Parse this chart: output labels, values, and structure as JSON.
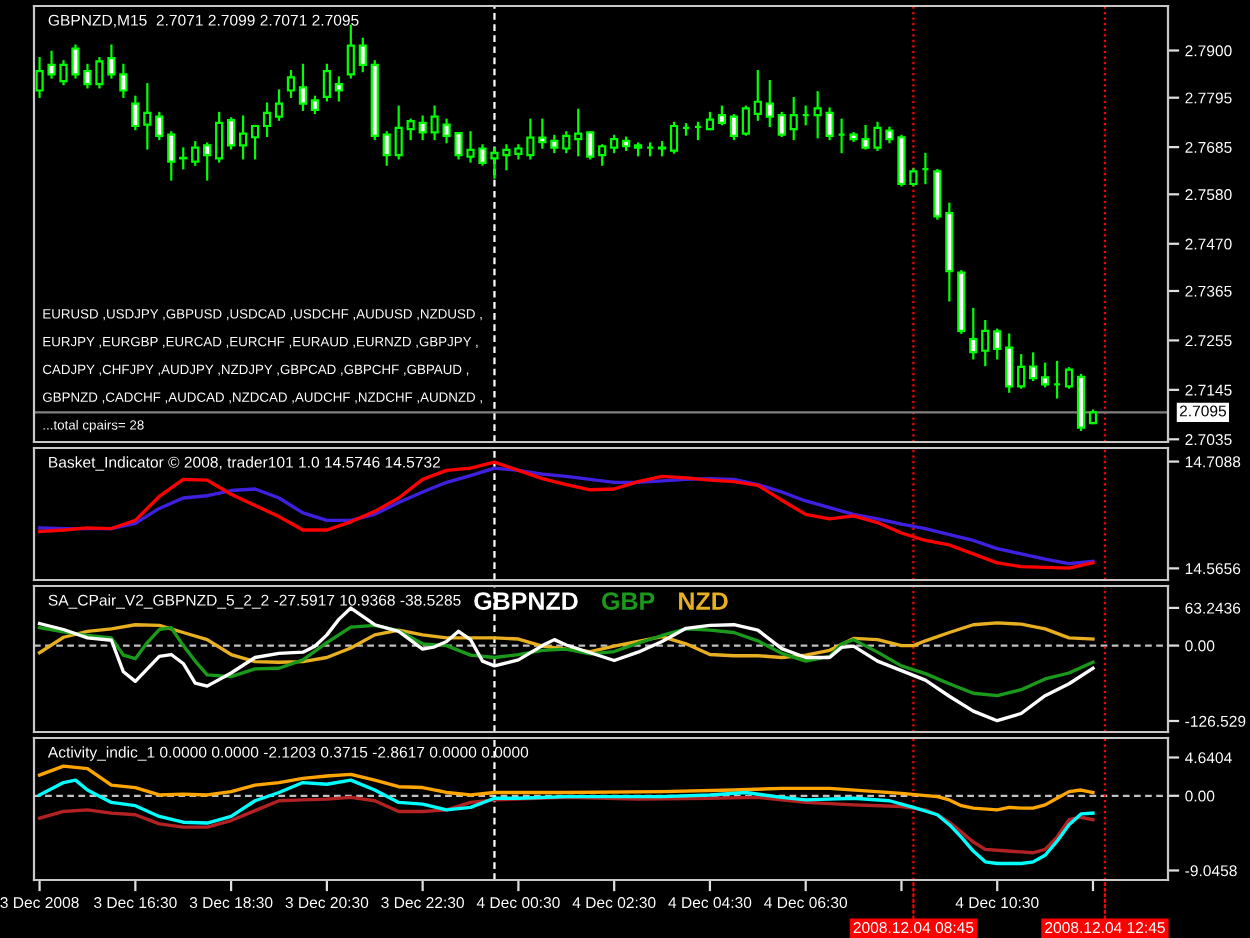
{
  "chart_data": [
    {
      "type": "candlestick",
      "title": "GBPNZD,M15  2.7071 2.7099 2.7071 2.7095",
      "annotations": [
        "EURUSD ,USDJPY ,GBPUSD ,USDCAD ,USDCHF ,AUDUSD ,NZDUSD ,",
        "EURJPY ,EURGBP ,EURCAD ,EURCHF ,EURAUD ,EURNZD ,GBPJPY ,",
        "CADJPY ,CHFJPY ,AUDJPY ,NZDJPY ,GBPCAD ,GBPCHF ,GBPAUD ,",
        "GBPNZD ,CADCHF ,AUDCAD ,NZDCAD ,AUDCHF ,NZDCHF ,AUDNZD ,",
        "...total cpairs= 28"
      ],
      "x": [
        "2008-12-03T14:30",
        "2008-12-03T14:45",
        "2008-12-03T15:00",
        "2008-12-03T15:15",
        "2008-12-03T15:30",
        "2008-12-03T15:45",
        "2008-12-03T16:00",
        "2008-12-03T16:15",
        "2008-12-03T16:30",
        "2008-12-03T16:45",
        "2008-12-03T17:00",
        "2008-12-03T17:15",
        "2008-12-03T17:30",
        "2008-12-03T17:45",
        "2008-12-03T18:00",
        "2008-12-03T18:15",
        "2008-12-03T18:30",
        "2008-12-03T18:45",
        "2008-12-03T19:00",
        "2008-12-03T19:15",
        "2008-12-03T19:30",
        "2008-12-03T19:45",
        "2008-12-03T20:00",
        "2008-12-03T20:15",
        "2008-12-03T20:30",
        "2008-12-03T20:45",
        "2008-12-03T21:00",
        "2008-12-03T21:15",
        "2008-12-03T21:30",
        "2008-12-03T21:45",
        "2008-12-03T22:00",
        "2008-12-03T22:15",
        "2008-12-03T22:30",
        "2008-12-03T22:45",
        "2008-12-03T23:00",
        "2008-12-03T23:15",
        "2008-12-03T23:30",
        "2008-12-03T23:45",
        "2008-12-04T00:00",
        "2008-12-04T00:15",
        "2008-12-04T00:30",
        "2008-12-04T00:45",
        "2008-12-04T01:00",
        "2008-12-04T01:15",
        "2008-12-04T01:30",
        "2008-12-04T01:45",
        "2008-12-04T02:00",
        "2008-12-04T02:15",
        "2008-12-04T02:30",
        "2008-12-04T02:45",
        "2008-12-04T03:00",
        "2008-12-04T03:15",
        "2008-12-04T03:30",
        "2008-12-04T03:45",
        "2008-12-04T04:00",
        "2008-12-04T04:15",
        "2008-12-04T04:30",
        "2008-12-04T04:45",
        "2008-12-04T05:00",
        "2008-12-04T05:15",
        "2008-12-04T05:30",
        "2008-12-04T05:45",
        "2008-12-04T06:00",
        "2008-12-04T06:15",
        "2008-12-04T06:30",
        "2008-12-04T06:45",
        "2008-12-04T07:00",
        "2008-12-04T07:15",
        "2008-12-04T07:30",
        "2008-12-04T07:45",
        "2008-12-04T08:00",
        "2008-12-04T08:15",
        "2008-12-04T08:30",
        "2008-12-04T08:45",
        "2008-12-04T09:00",
        "2008-12-04T09:15",
        "2008-12-04T09:30",
        "2008-12-04T09:45",
        "2008-12-04T10:00",
        "2008-12-04T10:15",
        "2008-12-04T10:30",
        "2008-12-04T10:45",
        "2008-12-04T11:00",
        "2008-12-04T11:15",
        "2008-12-04T11:30",
        "2008-12-04T11:45",
        "2008-12-04T12:00",
        "2008-12-04T12:15",
        "2008-12-04T12:30"
      ],
      "ohlc": [
        [
          2.7811,
          2.7883,
          2.7797,
          2.7854
        ],
        [
          2.7868,
          2.7897,
          2.784,
          2.7847
        ],
        [
          2.7832,
          2.7876,
          2.7825,
          2.7868
        ],
        [
          2.7904,
          2.7911,
          2.784,
          2.7847
        ],
        [
          2.7854,
          2.7868,
          2.7818,
          2.7825
        ],
        [
          2.7825,
          2.7883,
          2.7818,
          2.7876
        ],
        [
          2.7883,
          2.7911,
          2.784,
          2.7847
        ],
        [
          2.7847,
          2.7868,
          2.7797,
          2.7811
        ],
        [
          2.7782,
          2.7797,
          2.7725,
          2.7732
        ],
        [
          2.7735,
          2.7825,
          2.7682,
          2.7761
        ],
        [
          2.7753,
          2.7761,
          2.7703,
          2.771
        ],
        [
          2.7713,
          2.7718,
          2.7613,
          2.7653
        ],
        [
          2.766,
          2.7682,
          2.7638,
          2.7661
        ],
        [
          2.7653,
          2.7696,
          2.7646,
          2.7684
        ],
        [
          2.7689,
          2.7693,
          2.7613,
          2.7667
        ],
        [
          2.766,
          2.7761,
          2.7653,
          2.7739
        ],
        [
          2.7745,
          2.7749,
          2.7682,
          2.7689
        ],
        [
          2.7689,
          2.7753,
          2.766,
          2.7715
        ],
        [
          2.7707,
          2.7732,
          2.766,
          2.7732
        ],
        [
          2.7732,
          2.7782,
          2.771,
          2.7761
        ],
        [
          2.7753,
          2.7811,
          2.7746,
          2.7782
        ],
        [
          2.7811,
          2.7854,
          2.7797,
          2.784
        ],
        [
          2.7818,
          2.7868,
          2.7768,
          2.7782
        ],
        [
          2.7789,
          2.7797,
          2.7761,
          2.7768
        ],
        [
          2.7797,
          2.7868,
          2.7789,
          2.7854
        ],
        [
          2.7825,
          2.784,
          2.7789,
          2.7811
        ],
        [
          2.7847,
          2.7955,
          2.784,
          2.7911
        ],
        [
          2.7911,
          2.7926,
          2.7854,
          2.7868
        ],
        [
          2.7868,
          2.7876,
          2.7703,
          2.771
        ],
        [
          2.7713,
          2.7718,
          2.7646,
          2.7667
        ],
        [
          2.7667,
          2.7775,
          2.766,
          2.7728
        ],
        [
          2.7725,
          2.7746,
          2.7703,
          2.7743
        ],
        [
          2.7739,
          2.7753,
          2.7703,
          2.7718
        ],
        [
          2.7718,
          2.7775,
          2.7703,
          2.7753
        ],
        [
          2.7735,
          2.7746,
          2.7696,
          2.771
        ],
        [
          2.7716,
          2.7716,
          2.766,
          2.7667
        ],
        [
          2.7664,
          2.7718,
          2.7653,
          2.7679
        ],
        [
          2.7682,
          2.7689,
          2.7646,
          2.765
        ],
        [
          2.766,
          2.7682,
          2.7617,
          2.7672
        ],
        [
          2.7667,
          2.7689,
          2.7636,
          2.7679
        ],
        [
          2.767,
          2.7689,
          2.766,
          2.7682
        ],
        [
          2.7667,
          2.7746,
          2.766,
          2.7706
        ],
        [
          2.7706,
          2.7746,
          2.7684,
          2.7696
        ],
        [
          2.7699,
          2.771,
          2.7674,
          2.7684
        ],
        [
          2.7682,
          2.7718,
          2.7674,
          2.771
        ],
        [
          2.7703,
          2.7768,
          2.7667,
          2.7715
        ],
        [
          2.7718,
          2.7718,
          2.766,
          2.7664
        ],
        [
          2.7667,
          2.7689,
          2.7646,
          2.7687
        ],
        [
          2.7684,
          2.771,
          2.7674,
          2.7703
        ],
        [
          2.7699,
          2.7706,
          2.7679,
          2.7687
        ],
        [
          2.7689,
          2.7693,
          2.7667,
          2.7684
        ],
        [
          2.7684,
          2.7693,
          2.7667,
          2.7684
        ],
        [
          2.7684,
          2.7696,
          2.7667,
          2.7682
        ],
        [
          2.7677,
          2.7739,
          2.7673,
          2.7732
        ],
        [
          2.7728,
          2.7736,
          2.7713,
          2.7728
        ],
        [
          2.773,
          2.7739,
          2.7703,
          2.773
        ],
        [
          2.7725,
          2.7761,
          2.7725,
          2.7746
        ],
        [
          2.7756,
          2.7775,
          2.7736,
          2.7739
        ],
        [
          2.7753,
          2.7756,
          2.7703,
          2.771
        ],
        [
          2.7715,
          2.7775,
          2.7713,
          2.7771
        ],
        [
          2.7759,
          2.7854,
          2.7746,
          2.7786
        ],
        [
          2.7782,
          2.7832,
          2.7732,
          2.7753
        ],
        [
          2.7756,
          2.7761,
          2.771,
          2.7713
        ],
        [
          2.7725,
          2.7794,
          2.7703,
          2.7756
        ],
        [
          2.7756,
          2.7775,
          2.7736,
          2.7756
        ],
        [
          2.7756,
          2.7807,
          2.7707,
          2.7771
        ],
        [
          2.7761,
          2.7771,
          2.7703,
          2.771
        ],
        [
          2.7713,
          2.7746,
          2.7674,
          2.7713
        ],
        [
          2.7713,
          2.7716,
          2.7699,
          2.7703
        ],
        [
          2.7703,
          2.7732,
          2.7682,
          2.7684
        ],
        [
          2.7684,
          2.7739,
          2.7679,
          2.7728
        ],
        [
          2.7722,
          2.7728,
          2.7696,
          2.7703
        ],
        [
          2.7707,
          2.771,
          2.76,
          2.7603
        ],
        [
          2.7603,
          2.7636,
          2.76,
          2.7631
        ],
        [
          2.7636,
          2.767,
          2.7605,
          2.7636
        ],
        [
          2.7631,
          2.7634,
          2.7526,
          2.7531
        ],
        [
          2.7538,
          2.7559,
          2.7344,
          2.7409
        ],
        [
          2.7406,
          2.7409,
          2.7272,
          2.7276
        ],
        [
          2.7258,
          2.7325,
          2.7215,
          2.7229
        ],
        [
          2.7232,
          2.7298,
          2.72,
          2.7276
        ],
        [
          2.7275,
          2.7279,
          2.7215,
          2.7236
        ],
        [
          2.7239,
          2.7268,
          2.7141,
          2.7153
        ],
        [
          2.7153,
          2.7222,
          2.715,
          2.7196
        ],
        [
          2.7197,
          2.7226,
          2.7167,
          2.7171
        ],
        [
          2.7173,
          2.7203,
          2.7153,
          2.7157
        ],
        [
          2.7157,
          2.7207,
          2.7128,
          2.7157
        ],
        [
          2.7153,
          2.7193,
          2.715,
          2.719
        ],
        [
          2.7174,
          2.7178,
          2.7056,
          2.7061
        ],
        [
          2.7071,
          2.7099,
          2.7071,
          2.7095
        ]
      ],
      "color": "#00ff00",
      "xlim": [
        "2008-12-03T14:23",
        "2008-12-04T14:04"
      ],
      "ylim": [
        2.7029,
        2.7999
      ],
      "yticks": [
        {
          "value": 2.79,
          "label": "2.7900"
        },
        2.7795,
        2.7685,
        {
          "value": 2.758,
          "label": "2.7580"
        },
        {
          "value": 2.747,
          "label": "2.7470"
        },
        2.7365,
        2.7255,
        2.7145,
        2.7035
      ],
      "ref_lines": [
        {
          "axis": "x",
          "value": "2008-12-04T00:00",
          "color": "#ffffff",
          "line_style": "dashed"
        },
        {
          "axis": "x",
          "value": "2008-12-04T08:45",
          "color": "#ff0000",
          "line_style": "dotted"
        },
        {
          "axis": "x",
          "value": "2008-12-04T12:45",
          "color": "#ff0000",
          "line_style": "dotted"
        },
        {
          "axis": "y",
          "value": 2.7095,
          "label": "2.7095",
          "color": "#808080"
        }
      ],
      "tick_labels": "y"
    },
    {
      "type": "line",
      "title": "Basket_Indicator © 2008, trader101 1.0 14.5746 14.5732",
      "x": [
        "2008-12-03T14:30",
        "2008-12-03T15:00",
        "2008-12-03T15:30",
        "2008-12-03T16:00",
        "2008-12-03T16:30",
        "2008-12-03T17:00",
        "2008-12-03T17:30",
        "2008-12-03T18:00",
        "2008-12-03T18:30",
        "2008-12-03T19:00",
        "2008-12-03T19:30",
        "2008-12-03T20:00",
        "2008-12-03T20:30",
        "2008-12-03T21:00",
        "2008-12-03T21:30",
        "2008-12-03T22:00",
        "2008-12-03T22:30",
        "2008-12-03T23:00",
        "2008-12-03T23:30",
        "2008-12-04T00:00",
        "2008-12-04T00:30",
        "2008-12-04T01:00",
        "2008-12-04T01:30",
        "2008-12-04T02:00",
        "2008-12-04T02:30",
        "2008-12-04T03:00",
        "2008-12-04T03:30",
        "2008-12-04T04:00",
        "2008-12-04T04:30",
        "2008-12-04T05:00",
        "2008-12-04T05:30",
        "2008-12-04T06:00",
        "2008-12-04T06:30",
        "2008-12-04T07:00",
        "2008-12-04T07:30",
        "2008-12-04T08:00",
        "2008-12-04T08:30",
        "2008-12-04T09:00",
        "2008-12-04T09:30",
        "2008-12-04T10:00",
        "2008-12-04T10:30",
        "2008-12-04T11:00",
        "2008-12-04T11:30",
        "2008-12-04T12:00",
        "2008-12-04T12:30"
      ],
      "series": [
        {
          "color": "#ff0000",
          "values": [
            14.615,
            14.617,
            14.62,
            14.619,
            14.63,
            14.662,
            14.685,
            14.684,
            14.665,
            14.65,
            14.635,
            14.617,
            14.617,
            14.628,
            14.642,
            14.66,
            14.685,
            14.697,
            14.7,
            14.708,
            14.697,
            14.686,
            14.678,
            14.671,
            14.672,
            14.682,
            14.689,
            14.687,
            14.684,
            14.682,
            14.677,
            14.657,
            14.638,
            14.632,
            14.636,
            14.627,
            14.613,
            14.603,
            14.597,
            14.585,
            14.573,
            14.568,
            14.567,
            14.566,
            14.573
          ]
        },
        {
          "color": "#4020e0",
          "values": [
            14.62,
            14.619,
            14.619,
            14.619,
            14.626,
            14.646,
            14.66,
            14.663,
            14.67,
            14.672,
            14.66,
            14.64,
            14.63,
            14.63,
            14.638,
            14.654,
            14.668,
            14.681,
            14.69,
            14.7,
            14.697,
            14.692,
            14.689,
            14.685,
            14.681,
            14.681,
            14.683,
            14.685,
            14.686,
            14.685,
            14.678,
            14.668,
            14.656,
            14.647,
            14.638,
            14.632,
            14.625,
            14.619,
            14.611,
            14.603,
            14.592,
            14.585,
            14.578,
            14.572,
            14.575
          ]
        }
      ],
      "xlim": [
        "2008-12-03T14:23",
        "2008-12-04T14:04"
      ],
      "ylim": [
        14.55,
        14.727
      ],
      "yticks": [
        14.7088,
        14.5656
      ],
      "ref_lines": [
        {
          "axis": "x",
          "value": "2008-12-04T00:00",
          "color": "#ffffff",
          "line_style": "dashed"
        },
        {
          "axis": "x",
          "value": "2008-12-04T08:45",
          "color": "#ff0000",
          "line_style": "dotted"
        },
        {
          "axis": "x",
          "value": "2008-12-04T12:45",
          "color": "#ff0000",
          "line_style": "dotted"
        }
      ],
      "tick_labels": "y"
    },
    {
      "type": "line",
      "title": "SA_CPair_V2_GBPNZD_5_2_2 -27.5917 10.9368 -38.5285",
      "legend": "top",
      "series": [
        {
          "name": "GBPNZD",
          "color": "#ffffff",
          "x": [
            "2008-12-03T14:30",
            "2008-12-03T15:00",
            "2008-12-03T15:30",
            "2008-12-03T16:00",
            "2008-12-03T16:15",
            "2008-12-03T16:30",
            "2008-12-03T17:00",
            "2008-12-03T17:15",
            "2008-12-03T17:30",
            "2008-12-03T17:45",
            "2008-12-03T18:00",
            "2008-12-03T18:30",
            "2008-12-03T19:00",
            "2008-12-03T19:30",
            "2008-12-03T20:00",
            "2008-12-03T20:15",
            "2008-12-03T20:30",
            "2008-12-03T20:45",
            "2008-12-03T21:00",
            "2008-12-03T21:30",
            "2008-12-03T22:00",
            "2008-12-03T22:30",
            "2008-12-03T22:45",
            "2008-12-03T23:00",
            "2008-12-03T23:15",
            "2008-12-03T23:30",
            "2008-12-03T23:45",
            "2008-12-04T00:00",
            "2008-12-04T00:30",
            "2008-12-04T01:00",
            "2008-12-04T01:15",
            "2008-12-04T01:30",
            "2008-12-04T02:00",
            "2008-12-04T02:30",
            "2008-12-04T03:00",
            "2008-12-04T03:30",
            "2008-12-04T04:00",
            "2008-12-04T04:30",
            "2008-12-04T05:00",
            "2008-12-04T05:30",
            "2008-12-04T06:00",
            "2008-12-04T06:30",
            "2008-12-04T07:00",
            "2008-12-04T07:15",
            "2008-12-04T07:30",
            "2008-12-04T08:00",
            "2008-12-04T08:30",
            "2008-12-04T09:00",
            "2008-12-04T09:30",
            "2008-12-04T10:00",
            "2008-12-04T10:30",
            "2008-12-04T11:00",
            "2008-12-04T11:30",
            "2008-12-04T12:00",
            "2008-12-04T12:30"
          ],
          "values": [
            37,
            27,
            13,
            9,
            -44,
            -60,
            -18,
            -15,
            -30,
            -63,
            -68,
            -46,
            -20,
            -13,
            -11,
            -1,
            18,
            44,
            63,
            35,
            24,
            -6,
            -2,
            7,
            24,
            10,
            -26,
            -34,
            -24,
            0,
            10,
            1,
            -12,
            -25,
            -11,
            7,
            29,
            34,
            35,
            26,
            -5,
            -20,
            -20,
            -3,
            -1,
            -26,
            -42,
            -58,
            -85,
            -110,
            -126,
            -114,
            -84,
            -64,
            -38
          ]
        },
        {
          "name": "GBP",
          "color": "#1a9a1a",
          "x": [
            "2008-12-03T14:30",
            "2008-12-03T15:00",
            "2008-12-03T15:30",
            "2008-12-03T16:00",
            "2008-12-03T16:15",
            "2008-12-03T16:30",
            "2008-12-03T16:45",
            "2008-12-03T17:00",
            "2008-12-03T17:15",
            "2008-12-03T17:30",
            "2008-12-03T17:45",
            "2008-12-03T18:00",
            "2008-12-03T18:30",
            "2008-12-03T19:00",
            "2008-12-03T19:30",
            "2008-12-03T20:00",
            "2008-12-03T20:30",
            "2008-12-03T21:00",
            "2008-12-03T21:30",
            "2008-12-03T22:00",
            "2008-12-03T22:30",
            "2008-12-03T23:00",
            "2008-12-03T23:30",
            "2008-12-04T00:00",
            "2008-12-04T00:30",
            "2008-12-04T01:00",
            "2008-12-04T01:30",
            "2008-12-04T02:00",
            "2008-12-04T02:30",
            "2008-12-04T03:00",
            "2008-12-04T03:30",
            "2008-12-04T04:00",
            "2008-12-04T04:30",
            "2008-12-04T05:00",
            "2008-12-04T05:30",
            "2008-12-04T06:00",
            "2008-12-04T06:30",
            "2008-12-04T07:00",
            "2008-12-04T07:15",
            "2008-12-04T07:30",
            "2008-12-04T08:00",
            "2008-12-04T08:30",
            "2008-12-04T09:00",
            "2008-12-04T09:30",
            "2008-12-04T10:00",
            "2008-12-04T10:30",
            "2008-12-04T11:00",
            "2008-12-04T11:30",
            "2008-12-04T12:00",
            "2008-12-04T12:30"
          ],
          "values": [
            30,
            23,
            17,
            13,
            -16,
            -22,
            5,
            27,
            30,
            0,
            -26,
            -49,
            -52,
            -39,
            -38,
            -24,
            5,
            31,
            34,
            25,
            3,
            0,
            -16,
            -20,
            -15,
            -8,
            -6,
            -14,
            -10,
            4,
            17,
            28,
            26,
            22,
            8,
            -13,
            -26,
            -18,
            3,
            10,
            -11,
            -34,
            -47,
            -64,
            -80,
            -84,
            -74,
            -56,
            -46,
            -28
          ]
        },
        {
          "name": "NZD",
          "color": "#e8b020",
          "x": [
            "2008-12-03T14:30",
            "2008-12-03T15:00",
            "2008-12-03T15:30",
            "2008-12-03T16:00",
            "2008-12-03T16:30",
            "2008-12-03T17:00",
            "2008-12-03T17:30",
            "2008-12-03T18:00",
            "2008-12-03T18:30",
            "2008-12-03T19:00",
            "2008-12-03T19:30",
            "2008-12-03T20:00",
            "2008-12-03T20:30",
            "2008-12-03T21:00",
            "2008-12-03T21:30",
            "2008-12-03T22:00",
            "2008-12-03T22:30",
            "2008-12-03T23:00",
            "2008-12-03T23:30",
            "2008-12-04T00:00",
            "2008-12-04T00:30",
            "2008-12-04T01:00",
            "2008-12-04T01:30",
            "2008-12-04T02:00",
            "2008-12-04T02:30",
            "2008-12-04T03:00",
            "2008-12-04T03:30",
            "2008-12-04T04:00",
            "2008-12-04T04:30",
            "2008-12-04T05:00",
            "2008-12-04T05:30",
            "2008-12-04T06:00",
            "2008-12-04T06:30",
            "2008-12-04T07:00",
            "2008-12-04T07:30",
            "2008-12-04T08:00",
            "2008-12-04T08:30",
            "2008-12-04T08:45",
            "2008-12-04T09:00",
            "2008-12-04T09:30",
            "2008-12-04T10:00",
            "2008-12-04T10:30",
            "2008-12-04T11:00",
            "2008-12-04T11:30",
            "2008-12-04T12:00",
            "2008-12-04T12:30"
          ],
          "values": [
            -12,
            14,
            24,
            28,
            35,
            34,
            22,
            10,
            -15,
            -27,
            -28,
            -27,
            -20,
            -4,
            18,
            26,
            18,
            13,
            13,
            13,
            11,
            -1,
            -6,
            -10,
            -1,
            7,
            15,
            3,
            -15,
            -17,
            -17,
            -20,
            -16,
            -8,
            12,
            10,
            0,
            0,
            8,
            22,
            35,
            38,
            36,
            28,
            13,
            11
          ]
        }
      ],
      "xlim": [
        "2008-12-03T14:23",
        "2008-12-04T14:04"
      ],
      "ylim": [
        -145,
        100
      ],
      "yticks": [
        63.2436,
        {
          "value": 0,
          "label": "0.00"
        },
        -126.529
      ],
      "ref_lines": [
        {
          "axis": "y",
          "value": 0,
          "color": "#c0c0c0",
          "line_style": "dashed"
        },
        {
          "axis": "x",
          "value": "2008-12-04T00:00",
          "color": "#ffffff",
          "line_style": "dashed"
        },
        {
          "axis": "x",
          "value": "2008-12-04T08:45",
          "color": "#ff0000",
          "line_style": "dotted"
        },
        {
          "axis": "x",
          "value": "2008-12-04T12:45",
          "color": "#ff0000",
          "line_style": "dotted"
        }
      ],
      "tick_labels": "y"
    },
    {
      "type": "line",
      "title": "Activity_indic_1 0.0000 0.0000 -2.1203 0.3715 -2.8617 0.0000 0.0000",
      "series": [
        {
          "color": "#00ffff",
          "x": [
            "2008-12-03T14:30",
            "2008-12-03T15:00",
            "2008-12-03T15:15",
            "2008-12-03T15:30",
            "2008-12-03T16:00",
            "2008-12-03T16:30",
            "2008-12-03T17:00",
            "2008-12-03T17:30",
            "2008-12-03T18:00",
            "2008-12-03T18:30",
            "2008-12-03T19:00",
            "2008-12-03T19:30",
            "2008-12-03T20:00",
            "2008-12-03T20:30",
            "2008-12-03T21:00",
            "2008-12-03T21:30",
            "2008-12-03T22:00",
            "2008-12-03T22:30",
            "2008-12-03T23:00",
            "2008-12-03T23:30",
            "2008-12-04T00:00",
            "2008-12-04T00:30",
            "2008-12-04T01:30",
            "2008-12-04T02:30",
            "2008-12-04T03:30",
            "2008-12-04T04:30",
            "2008-12-04T05:15",
            "2008-12-04T06:00",
            "2008-12-04T06:30",
            "2008-12-04T07:30",
            "2008-12-04T08:15",
            "2008-12-04T08:45",
            "2008-12-04T09:15",
            "2008-12-04T09:30",
            "2008-12-04T09:45",
            "2008-12-04T10:00",
            "2008-12-04T10:15",
            "2008-12-04T10:30",
            "2008-12-04T11:00",
            "2008-12-04T11:15",
            "2008-12-04T11:30",
            "2008-12-04T11:45",
            "2008-12-04T12:00",
            "2008-12-04T12:15",
            "2008-12-04T12:30"
          ],
          "values": [
            0.1,
            1.6,
            1.9,
            0.7,
            -0.8,
            -1.2,
            -2.5,
            -3.2,
            -3.3,
            -2.5,
            -0.6,
            0.4,
            1.6,
            1.4,
            1.9,
            0.7,
            -0.8,
            -1.0,
            -1.7,
            -1.4,
            -0.3,
            -0.3,
            -0.1,
            -0.1,
            -0.1,
            0.1,
            0.4,
            -0.2,
            -0.5,
            -0.3,
            -0.6,
            -1.4,
            -2.3,
            -3.5,
            -5.0,
            -6.7,
            -8.0,
            -8.2,
            -8.2,
            -8.0,
            -7.2,
            -5.5,
            -3.5,
            -2.2,
            -2.1
          ]
        },
        {
          "color": "#ffa500",
          "x": [
            "2008-12-03T14:30",
            "2008-12-03T15:00",
            "2008-12-03T15:30",
            "2008-12-03T16:00",
            "2008-12-03T16:30",
            "2008-12-03T17:00",
            "2008-12-03T17:30",
            "2008-12-03T18:00",
            "2008-12-03T18:30",
            "2008-12-03T19:00",
            "2008-12-03T19:30",
            "2008-12-03T20:00",
            "2008-12-03T20:30",
            "2008-12-03T21:00",
            "2008-12-03T21:30",
            "2008-12-03T22:00",
            "2008-12-03T22:30",
            "2008-12-03T23:00",
            "2008-12-03T23:30",
            "2008-12-04T00:00",
            "2008-12-04T01:30",
            "2008-12-04T03:30",
            "2008-12-04T05:00",
            "2008-12-04T06:00",
            "2008-12-04T07:00",
            "2008-12-04T07:45",
            "2008-12-04T08:30",
            "2008-12-04T09:15",
            "2008-12-04T09:30",
            "2008-12-04T09:45",
            "2008-12-04T10:00",
            "2008-12-04T10:30",
            "2008-12-04T10:45",
            "2008-12-04T11:00",
            "2008-12-04T11:15",
            "2008-12-04T11:30",
            "2008-12-04T11:45",
            "2008-12-04T12:00",
            "2008-12-04T12:15",
            "2008-12-04T12:30"
          ],
          "values": [
            2.5,
            3.6,
            3.3,
            1.3,
            1.0,
            0.1,
            0.2,
            0.1,
            0.5,
            1.3,
            1.6,
            2.1,
            2.4,
            2.6,
            1.9,
            1.1,
            1.0,
            0.4,
            0.1,
            0.4,
            0.4,
            0.5,
            0.7,
            0.9,
            0.9,
            0.6,
            0.3,
            -0.1,
            -0.5,
            -1.2,
            -1.5,
            -1.7,
            -1.4,
            -1.5,
            -1.5,
            -1.1,
            -0.3,
            0.5,
            0.7,
            0.4
          ]
        },
        {
          "color": "#b22222",
          "x": [
            "2008-12-03T14:30",
            "2008-12-03T15:00",
            "2008-12-03T15:30",
            "2008-12-03T16:00",
            "2008-12-03T16:30",
            "2008-12-03T17:00",
            "2008-12-03T17:30",
            "2008-12-03T18:00",
            "2008-12-03T18:30",
            "2008-12-03T19:00",
            "2008-12-03T19:30",
            "2008-12-03T20:00",
            "2008-12-03T20:30",
            "2008-12-03T21:00",
            "2008-12-03T21:30",
            "2008-12-03T22:00",
            "2008-12-03T22:30",
            "2008-12-03T23:00",
            "2008-12-03T23:30",
            "2008-12-04T00:00",
            "2008-12-04T01:30",
            "2008-12-04T03:00",
            "2008-12-04T04:30",
            "2008-12-04T05:30",
            "2008-12-04T06:30",
            "2008-12-04T07:30",
            "2008-12-04T08:30",
            "2008-12-04T09:00",
            "2008-12-04T09:15",
            "2008-12-04T09:30",
            "2008-12-04T09:45",
            "2008-12-04T10:00",
            "2008-12-04T10:15",
            "2008-12-04T10:30",
            "2008-12-04T11:00",
            "2008-12-04T11:15",
            "2008-12-04T11:30",
            "2008-12-04T11:45",
            "2008-12-04T12:00",
            "2008-12-04T12:15",
            "2008-12-04T12:30"
          ],
          "values": [
            -2.7,
            -1.9,
            -1.7,
            -2.1,
            -2.3,
            -3.4,
            -3.8,
            -3.8,
            -3.0,
            -1.8,
            -0.6,
            -0.5,
            -0.4,
            -0.2,
            -0.6,
            -1.9,
            -1.9,
            -1.7,
            -0.8,
            -0.5,
            -0.2,
            -0.4,
            -0.3,
            -0.2,
            -0.8,
            -1.1,
            -1.3,
            -1.7,
            -2.3,
            -3.2,
            -4.4,
            -5.6,
            -6.5,
            -6.6,
            -6.8,
            -6.9,
            -6.5,
            -5.0,
            -2.9,
            -2.6,
            -2.9
          ]
        }
      ],
      "xlim": [
        "2008-12-03T14:23",
        "2008-12-04T14:04"
      ],
      "ylim": [
        -10.2,
        7.0
      ],
      "yticks": [
        4.6404,
        {
          "value": 0,
          "label": "0.00"
        },
        -9.0458
      ],
      "xticks": [
        {
          "value": "2008-12-03T14:30",
          "label": "3 Dec 2008"
        },
        {
          "value": "2008-12-03T16:30",
          "label": "3 Dec 16:30"
        },
        {
          "value": "2008-12-03T18:30",
          "label": "3 Dec 18:30"
        },
        {
          "value": "2008-12-03T20:30",
          "label": "3 Dec 20:30"
        },
        {
          "value": "2008-12-03T22:30",
          "label": "3 Dec 22:30"
        },
        {
          "value": "2008-12-04T00:30",
          "label": "4 Dec 00:30"
        },
        {
          "value": "2008-12-04T02:30",
          "label": "4 Dec 02:30"
        },
        {
          "value": "2008-12-04T04:30",
          "label": "4 Dec 04:30"
        },
        {
          "value": "2008-12-04T06:30",
          "label": "4 Dec 06:30"
        },
        {
          "value": "2008-12-04T08:30",
          "label": null
        },
        {
          "value": "2008-12-04T10:30",
          "label": "4 Dec 10:30"
        },
        {
          "value": "2008-12-04T12:30",
          "label": null
        }
      ],
      "ref_lines": [
        {
          "axis": "y",
          "value": 0,
          "color": "#c0c0c0",
          "line_style": "dashed"
        },
        {
          "axis": "x",
          "value": "2008-12-04T00:00",
          "color": "#ffffff",
          "line_style": "dashed"
        },
        {
          "axis": "x",
          "value": "2008-12-04T08:45",
          "label": "2008.12.04 08:45",
          "color": "#ff0000",
          "line_style": "dotted"
        },
        {
          "axis": "x",
          "value": "2008-12-04T12:45",
          "label": "2008.12.04 12:45",
          "color": "#ff0000",
          "line_style": "dotted"
        }
      ]
    }
  ]
}
